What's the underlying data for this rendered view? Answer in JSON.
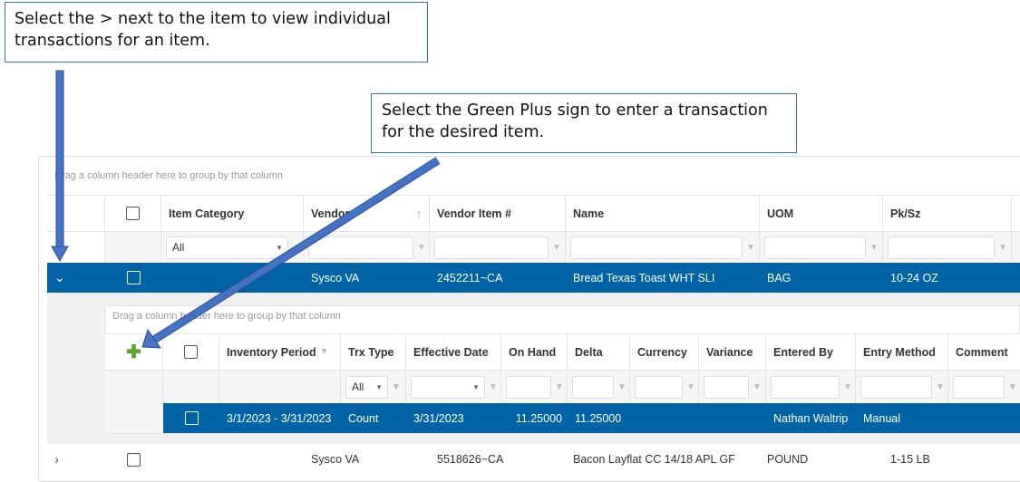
{
  "callouts": {
    "expand": "Select the > next to the item to view individual transactions for an item.",
    "add": "Select the Green Plus sign to enter a transaction for the desired item."
  },
  "main_grid": {
    "group_hint": "Drag a column header here to group by that column",
    "headers": {
      "item_category": "Item Category",
      "vendor": "Vendor",
      "vendor_item": "Vendor Item #",
      "name": "Name",
      "uom": "UOM",
      "pksz": "Pk/Sz"
    },
    "filters": {
      "item_category": "All"
    },
    "rows": [
      {
        "vendor": "Sysco VA",
        "vendor_item": "2452211~CA",
        "name": "Bread Texas Toast WHT SLI",
        "uom": "BAG",
        "pksz": "10-24 OZ",
        "expanded": true,
        "selected": true
      },
      {
        "vendor": "Sysco VA",
        "vendor_item": "5518626~CA",
        "name": "Bacon Layflat CC 14/18 APL GF",
        "uom": "POUND",
        "pksz": "1-15 LB",
        "expanded": false,
        "selected": false
      }
    ]
  },
  "detail_grid": {
    "group_hint": "Drag a column header here to group by that column",
    "headers": {
      "inventory_period": "Inventory Period",
      "trx_type": "Trx Type",
      "effective_date": "Effective Date",
      "on_hand": "On Hand",
      "delta": "Delta",
      "currency": "Currency",
      "variance": "Variance",
      "entered_by": "Entered By",
      "entry_method": "Entry Method",
      "comment": "Comment"
    },
    "filters": {
      "trx_type": "All"
    },
    "rows": [
      {
        "inventory_period": "3/1/2023 - 3/31/2023",
        "trx_type": "Count",
        "effective_date": "3/31/2023",
        "on_hand": "11.25000",
        "delta": "11.25000",
        "entered_by": "Nathan Waltrip",
        "entry_method": "Manual"
      }
    ]
  },
  "colors": {
    "selected_row": "#0063a5",
    "add_icon": "#5aa832",
    "arrow": "#4472c4"
  }
}
